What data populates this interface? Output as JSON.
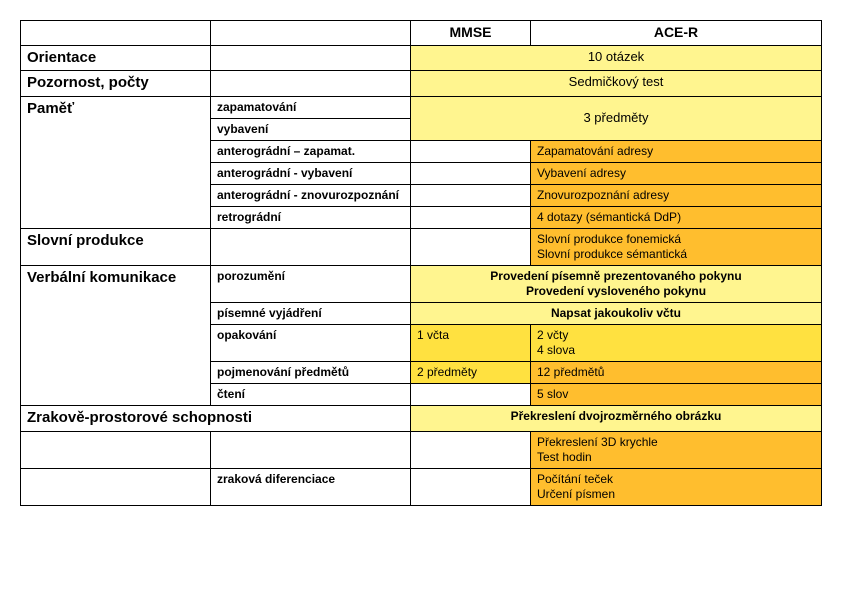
{
  "header": {
    "c1": "",
    "c2": "",
    "mmse": "MMSE",
    "acer": "ACE-R"
  },
  "table": {
    "orientace": {
      "label": "Orientace",
      "merged": "10 otázek"
    },
    "pozornost": {
      "label": "Pozornost, počty",
      "merged": "Sedmičkový test"
    },
    "pamet": {
      "label": "Paměť",
      "zapamatovani": "zapamatování",
      "vybaveni": "vybavení",
      "merged_3predmety": "3 předměty",
      "antero_zapamat": {
        "sub": "anterográdní – zapamat.",
        "acer": "Zapamatování adresy"
      },
      "antero_vybaveni": {
        "sub": "anterográdní - vybavení",
        "acer": "Vybavení adresy"
      },
      "antero_znovu": {
        "sub": "anterográdní - znovurozpoznání",
        "acer": "Znovurozpoznání adresy"
      },
      "retrogradni": {
        "sub": "retrográdní",
        "acer": "4 dotazy (sémantická DdP)"
      }
    },
    "slovni_produkce": {
      "label": "Slovní produkce",
      "acer_line1": "Slovní produkce fonemická",
      "acer_line2": "Slovní produkce sémantická"
    },
    "verbalni": {
      "label": "Verbální komunikace",
      "porozumeni": {
        "sub": "porozumění",
        "line1": "Provedení písemně prezentovaného pokynu",
        "line2": "Provedení vysloveného pokynu"
      },
      "pisemne": {
        "sub": "písemné vyjádření",
        "merged": "Napsat jakoukoliv včtu"
      },
      "opakovani": {
        "sub": "opakování",
        "mmse": "1 včta",
        "acer_l1": "2 včty",
        "acer_l2": "4 slova"
      },
      "pojmenovani": {
        "sub": "pojmenování předmětů",
        "mmse": "2 předměty",
        "acer": "12 předmětů"
      },
      "cteni": {
        "sub": "čtení",
        "acer": "5 slov"
      }
    },
    "zrak": {
      "label": "Zrakově-prostorové schopnosti",
      "merged": "Překreslení dvojrozměrného obrázku",
      "row2_l1": "Překreslení 3D krychle",
      "row2_l2": "Test hodin",
      "diferenciace": {
        "sub": "zraková diferenciace",
        "acer_l1": "Počítání teček",
        "acer_l2": "Určení písmen"
      }
    }
  },
  "colors": {
    "light": "#fff58f",
    "mid": "#ffe140",
    "dark": "#ffbe2e"
  }
}
